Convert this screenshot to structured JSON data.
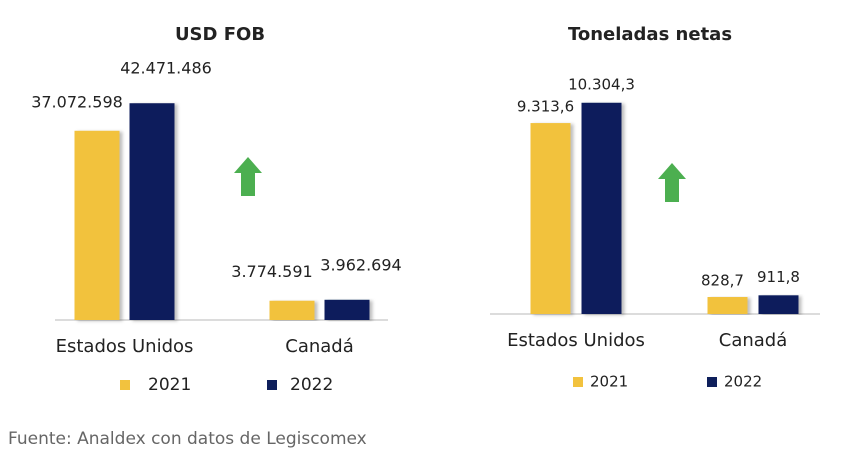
{
  "chart_data": [
    {
      "type": "bar",
      "title": "USD FOB",
      "categories": [
        "Estados Unidos",
        "Canadá"
      ],
      "series": [
        {
          "name": "2021",
          "color": "#f2c23e",
          "values": [
            37072598,
            3774591
          ],
          "value_labels": [
            "37.072.598",
            "3.774.591"
          ]
        },
        {
          "name": "2022",
          "color": "#0e1f5b",
          "values": [
            42471486,
            3962694
          ],
          "value_labels": [
            "42.471.486",
            "3.962.694"
          ]
        }
      ],
      "ylim": [
        0,
        48000000
      ]
    },
    {
      "type": "bar",
      "title": "Toneladas netas",
      "categories": [
        "Estados Unidos",
        "Canadá"
      ],
      "series": [
        {
          "name": "2021",
          "color": "#f2c23e",
          "values": [
            9313.6,
            828.7
          ],
          "value_labels": [
            "9.313,6",
            "828,7"
          ]
        },
        {
          "name": "2022",
          "color": "#0e1f5b",
          "values": [
            10304.3,
            911.8
          ],
          "value_labels": [
            "10.304,3",
            "911,8"
          ]
        }
      ],
      "ylim": [
        0,
        12000
      ]
    }
  ],
  "source": "Fuente: Analdex con datos de Legiscomex"
}
